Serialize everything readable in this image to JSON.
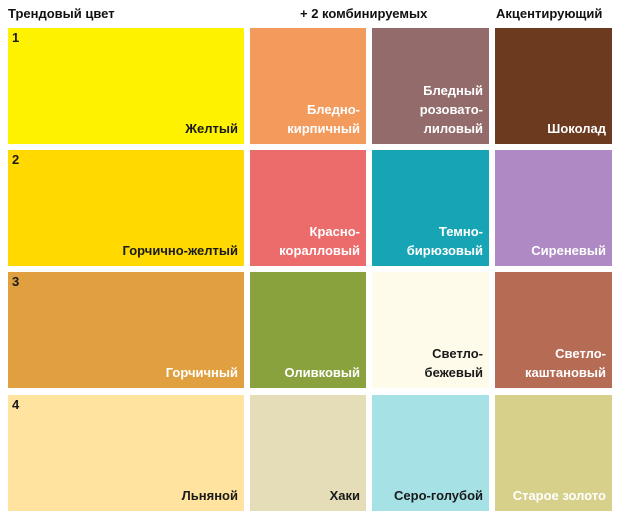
{
  "headers": {
    "trend": "Трендовый цвет",
    "combine": "+ 2 комбинируемых",
    "accent": "Акцентирующий"
  },
  "rows": [
    {
      "number": "1",
      "swatches": [
        {
          "label": "Желтый",
          "color": "#FFF200",
          "text_color": "dark"
        },
        {
          "label": "Бледно-\nкирпичный",
          "color": "#F39A5D",
          "text_color": "light"
        },
        {
          "label": "Бледный\nрозовато-\nлиловый",
          "color": "#936B6B",
          "text_color": "light"
        },
        {
          "label": "Шоколад",
          "color": "#6B3A1F",
          "text_color": "light"
        }
      ]
    },
    {
      "number": "2",
      "swatches": [
        {
          "label": "Горчично-желтый",
          "color": "#FFD900",
          "text_color": "dark"
        },
        {
          "label": "Красно-\nкоралловый",
          "color": "#EC6B6B",
          "text_color": "light"
        },
        {
          "label": "Темно-\nбирюзовый",
          "color": "#17A5B5",
          "text_color": "light"
        },
        {
          "label": "Сиреневый",
          "color": "#AE89C3",
          "text_color": "light"
        }
      ]
    },
    {
      "number": "3",
      "swatches": [
        {
          "label": "Горчичный",
          "color": "#E0A040",
          "text_color": "light"
        },
        {
          "label": "Оливковый",
          "color": "#8AA23E",
          "text_color": "light"
        },
        {
          "label": "Светло-\nбежевый",
          "color": "#FEFBEA",
          "text_color": "dark"
        },
        {
          "label": "Светло-\nкаштановый",
          "color": "#B56B54",
          "text_color": "light"
        }
      ]
    },
    {
      "number": "4",
      "swatches": [
        {
          "label": "Льняной",
          "color": "#FFE39E",
          "text_color": "dark"
        },
        {
          "label": "Хаки",
          "color": "#E4DDB8",
          "text_color": "dark"
        },
        {
          "label": "Серо-голубой",
          "color": "#A6E1E6",
          "text_color": "dark"
        },
        {
          "label": "Старое золото",
          "color": "#D6D08B",
          "text_color": "light"
        }
      ]
    }
  ]
}
